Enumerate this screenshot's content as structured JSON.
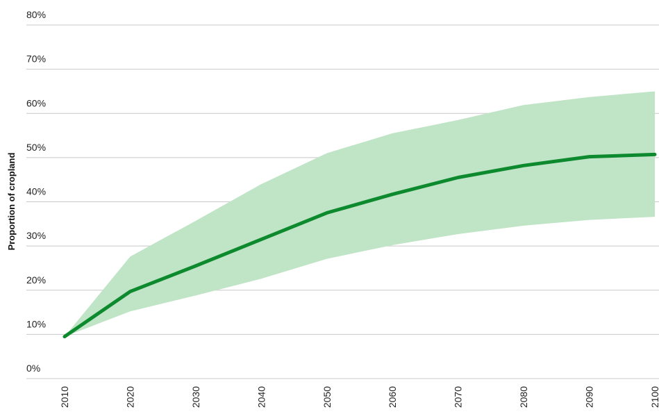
{
  "chart_data": {
    "type": "line",
    "title": "",
    "xlabel": "",
    "ylabel": "Proportion of cropland",
    "x": [
      2010,
      2020,
      2030,
      2040,
      2050,
      2060,
      2070,
      2080,
      2090,
      2100
    ],
    "x_tick_labels": [
      "2010",
      "2020",
      "2030",
      "2040",
      "2050",
      "2060",
      "2070",
      "2080",
      "2090",
      "2100"
    ],
    "y_tick_labels": [
      "0%",
      "10%",
      "20%",
      "30%",
      "40%",
      "50%",
      "60%",
      "70%",
      "80%"
    ],
    "y_ticks": [
      0,
      10,
      20,
      30,
      40,
      50,
      60,
      70,
      80
    ],
    "ylim": [
      0,
      80
    ],
    "xlim": [
      2010,
      2100
    ],
    "grid": true,
    "legend": "none",
    "series": [
      {
        "values": [
          9.5,
          19.7,
          25.5,
          31.5,
          37.5,
          41.7,
          45.5,
          48.2,
          50.2,
          50.7
        ],
        "color": "#0e8a2e"
      }
    ],
    "band": {
      "lower": [
        9.5,
        15.2,
        18.8,
        22.6,
        27.1,
        30.2,
        32.7,
        34.6,
        35.9,
        36.6
      ],
      "upper": [
        9.5,
        27.6,
        35.7,
        44.0,
        51.0,
        55.5,
        58.5,
        61.9,
        63.7,
        65.0
      ],
      "color": "#c0e4c6"
    }
  }
}
